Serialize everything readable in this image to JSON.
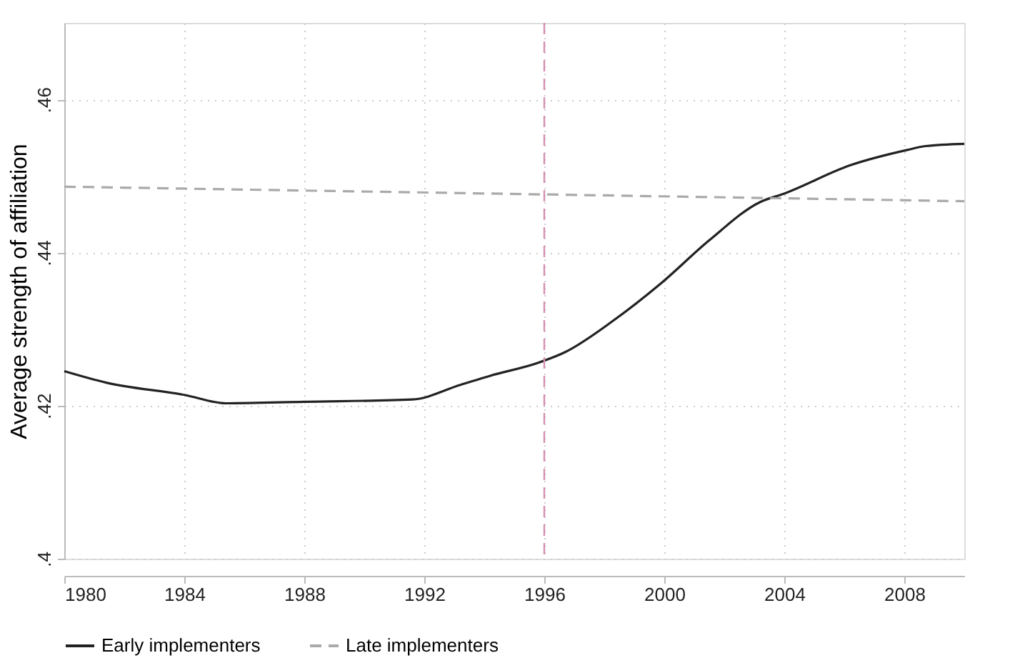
{
  "chart_data": {
    "type": "line",
    "ylabel": "Average strength of affiliation",
    "x": [
      1980,
      1981.4,
      1984,
      1985.4,
      1988,
      1991.6,
      1993.2,
      1994.2,
      1995.8,
      1996.7,
      1998.3,
      1999.9,
      2001.5,
      2003.2,
      2004,
      2006.2,
      2008.1,
      2008.7,
      2010
    ],
    "series": [
      {
        "name": "Early implementers",
        "color": "#222222",
        "line_style": "solid",
        "values": [
          0.4245,
          0.423,
          0.4214,
          0.4203,
          0.4205,
          0.4208,
          0.4227,
          0.4239,
          0.4256,
          0.427,
          0.4311,
          0.436,
          0.4416,
          0.4466,
          0.4477,
          0.4514,
          0.4534,
          0.4539,
          0.4542
        ]
      },
      {
        "name": "Late implementers",
        "color": "#aaaaaa",
        "line_style": "dashed",
        "x": [
          1980,
          2010
        ],
        "values": [
          0.4486,
          0.4467
        ]
      }
    ],
    "xlim": [
      1980,
      2010
    ],
    "xticks": [
      1980,
      1984,
      1988,
      1992,
      1996,
      2000,
      2004,
      2008
    ],
    "ylim": [
      0.4,
      0.47
    ],
    "yticks": [
      {
        "value": 0.4,
        "label": ".4"
      },
      {
        "value": 0.42,
        "label": ".42"
      },
      {
        "value": 0.44,
        "label": ".44"
      },
      {
        "value": 0.46,
        "label": ".46"
      }
    ],
    "ref_lines": [
      {
        "axis": "x",
        "value": 1996,
        "color": "#d690b4",
        "line_style": "dashed"
      }
    ],
    "grid": true,
    "legend": "bottom"
  }
}
